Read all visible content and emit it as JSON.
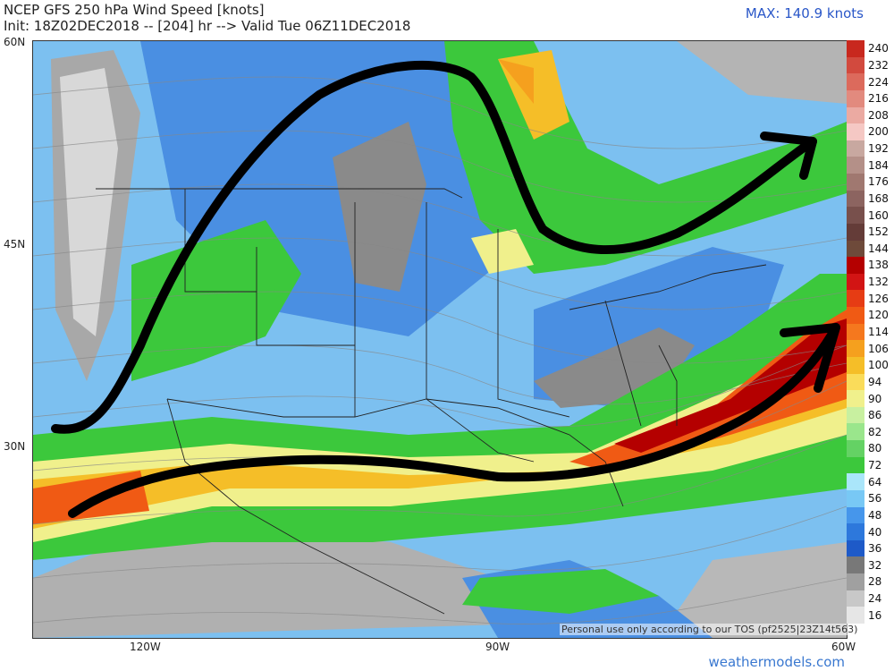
{
  "header": {
    "title_line1": "NCEP GFS 250 hPa Wind Speed [knots]",
    "title_line2": "Init: 18Z02DEC2018 -- [204] hr --> Valid Tue 06Z11DEC2018",
    "max_label": "MAX: 140.9 knots"
  },
  "axes": {
    "lat_labels": [
      "60N",
      "45N",
      "30N"
    ],
    "lon_labels": [
      "120W",
      "90W",
      "60W"
    ]
  },
  "colorbar": {
    "levels": [
      "240",
      "232",
      "224",
      "216",
      "208",
      "200",
      "192",
      "184",
      "176",
      "168",
      "160",
      "152",
      "144",
      "138",
      "132",
      "126",
      "120",
      "114",
      "106",
      "100",
      "94",
      "90",
      "86",
      "82",
      "80",
      "72",
      "64",
      "56",
      "48",
      "40",
      "36",
      "32",
      "28",
      "24",
      "16"
    ],
    "colors": [
      "#c8281e",
      "#d24a3e",
      "#dc6a5c",
      "#e28a7e",
      "#ebaaa2",
      "#f5c8c4",
      "#c8a8a0",
      "#b49088",
      "#a07870",
      "#8c6460",
      "#78504c",
      "#643c38",
      "#6e4a3a",
      "#b40000",
      "#d21414",
      "#e63c14",
      "#f05a14",
      "#f5781e",
      "#f5a01e",
      "#f5be28",
      "#fadc5a",
      "#f0f08c",
      "#c8f0a0",
      "#9ae68c",
      "#64d264",
      "#3cc83c",
      "#aae6fa",
      "#78c8f5",
      "#4696eb",
      "#2d78dc",
      "#1e5ac8",
      "#787878",
      "#a0a0a0",
      "#c8c8c8",
      "#e6e6e6"
    ]
  },
  "footer": {
    "tos_text": "Personal use only according to our TOS (pf2525|23Z14t563)",
    "site": "weathermodels.com"
  },
  "map": {
    "jet_arrows": [
      "northern-ridge-trough-jet-arrow",
      "southern-subtropical-jet-arrow"
    ]
  }
}
